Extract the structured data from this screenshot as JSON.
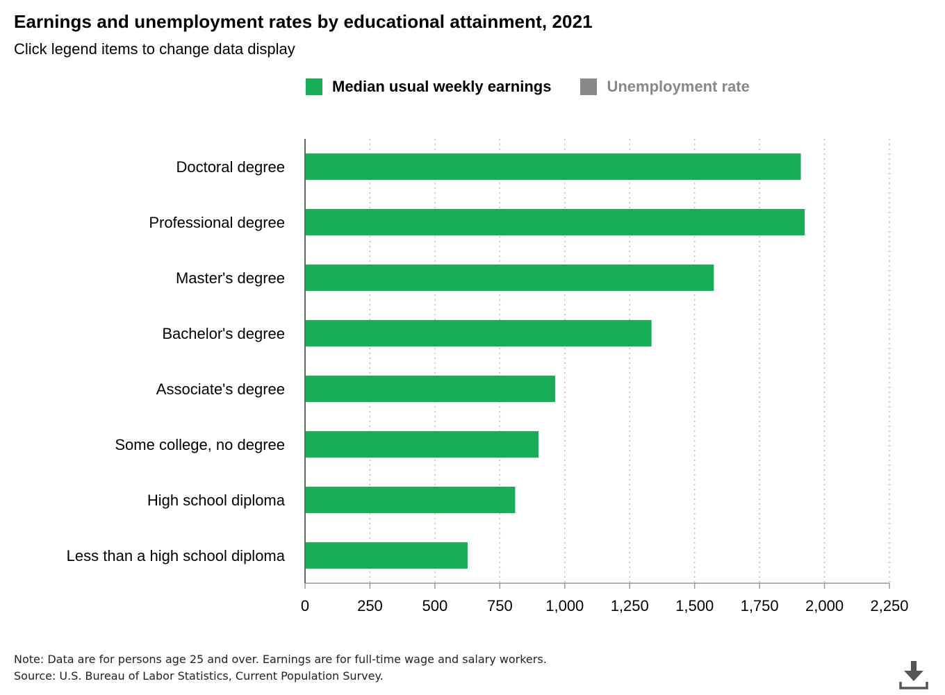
{
  "title": "Earnings and unemployment rates by educational attainment, 2021",
  "subtitle": "Click legend items to change data display",
  "legend": [
    {
      "label": "Median usual weekly earnings",
      "color": "#16AD56",
      "active": true
    },
    {
      "label": "Unemployment rate",
      "color": "#888888",
      "active": false
    }
  ],
  "chart_data": {
    "type": "bar",
    "orientation": "horizontal",
    "categories": [
      "Doctoral degree",
      "Professional degree",
      "Master's degree",
      "Bachelor's degree",
      "Associate's degree",
      "Some college, no degree",
      "High school diploma",
      "Less than a high school diploma"
    ],
    "series": [
      {
        "name": "Median usual weekly earnings",
        "values": [
          1909,
          1924,
          1574,
          1334,
          963,
          899,
          809,
          626
        ],
        "color": "#16AD56"
      }
    ],
    "xlim": [
      0,
      2250
    ],
    "xticks": [
      0,
      250,
      500,
      750,
      1000,
      1250,
      1500,
      1750,
      2000,
      2250
    ],
    "xtick_labels": [
      "0",
      "250",
      "500",
      "750",
      "1,000",
      "1,250",
      "1,500",
      "1,750",
      "2,000",
      "2,250"
    ],
    "grid": "vertical dotted"
  },
  "note": "Note: Data are for persons age 25 and over. Earnings are for full-time wage and salary workers.",
  "source": "Source: U.S. Bureau of Labor Statistics, Current Population Survey.",
  "download_icon": "download-icon"
}
